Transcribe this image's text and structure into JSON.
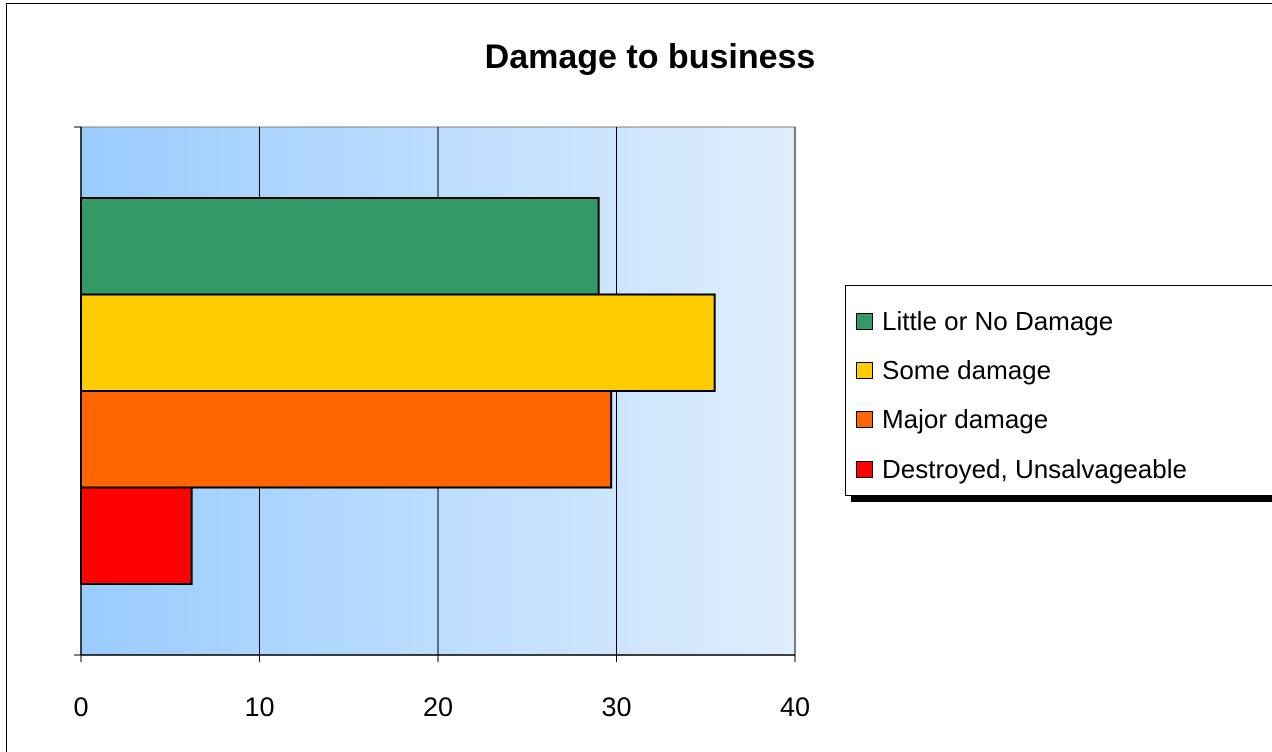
{
  "chart_data": {
    "type": "bar",
    "orientation": "horizontal",
    "title": "Damage to business",
    "xlabel": "",
    "ylabel": "",
    "xlim": [
      0,
      40
    ],
    "xticks": [
      "0",
      "10",
      "20",
      "30",
      "40"
    ],
    "grid": "vertical",
    "legend_position": "right",
    "series": [
      {
        "name": "Little or No Damage",
        "value": 29,
        "color": "#339966"
      },
      {
        "name": "Some damage",
        "value": 35.5,
        "color": "#FFCC00"
      },
      {
        "name": "Major damage",
        "value": 29.7,
        "color": "#FF6600"
      },
      {
        "name": "Destroyed, Unsalvageable",
        "value": 6.2,
        "color": "#FF0000"
      }
    ]
  }
}
